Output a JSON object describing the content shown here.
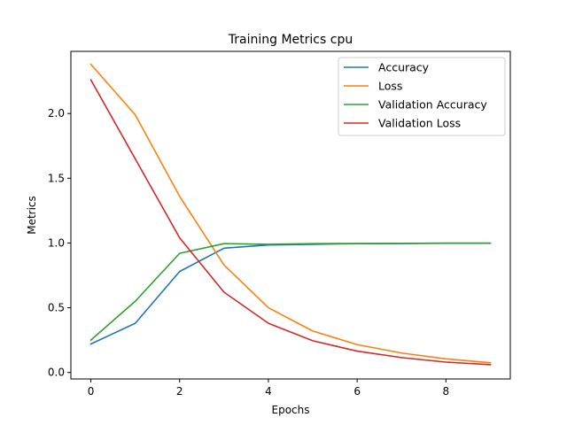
{
  "chart_data": {
    "type": "line",
    "title": "Training Metrics cpu",
    "xlabel": "Epochs",
    "ylabel": "Metrics",
    "x": [
      0,
      1,
      2,
      3,
      4,
      5,
      6,
      7,
      8,
      9
    ],
    "xlim": [
      -0.45,
      9.45
    ],
    "ylim": [
      -0.05,
      2.48
    ],
    "xticks": [
      0,
      2,
      4,
      6,
      8
    ],
    "xtick_labels": [
      "0",
      "2",
      "4",
      "6",
      "8"
    ],
    "yticks": [
      0.0,
      0.5,
      1.0,
      1.5,
      2.0
    ],
    "ytick_labels": [
      "0.0",
      "0.5",
      "1.0",
      "1.5",
      "2.0"
    ],
    "grid": false,
    "legend_position": "top-right",
    "series": [
      {
        "name": "Accuracy",
        "color": "#1f77b4",
        "values": [
          0.22,
          0.38,
          0.78,
          0.96,
          0.985,
          0.99,
          0.995,
          0.996,
          0.998,
          0.998
        ]
      },
      {
        "name": "Loss",
        "color": "#ff7f0e",
        "values": [
          2.38,
          1.99,
          1.36,
          0.83,
          0.5,
          0.32,
          0.215,
          0.15,
          0.105,
          0.075
        ]
      },
      {
        "name": "Validation Accuracy",
        "color": "#2ca02c",
        "values": [
          0.25,
          0.55,
          0.92,
          0.995,
          0.99,
          0.995,
          0.996,
          0.997,
          0.999,
          0.999
        ]
      },
      {
        "name": "Validation Loss",
        "color": "#d62728",
        "values": [
          2.26,
          1.65,
          1.04,
          0.62,
          0.38,
          0.245,
          0.165,
          0.115,
          0.08,
          0.06
        ]
      }
    ]
  }
}
